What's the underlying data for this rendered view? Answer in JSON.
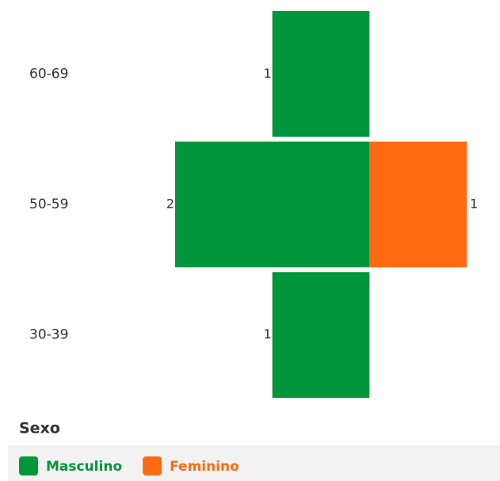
{
  "chart_data": {
    "type": "pyramid",
    "categories": [
      "60-69",
      "50-59",
      "30-39"
    ],
    "series": [
      {
        "name": "Masculino",
        "color": "#009639",
        "values": [
          1,
          2,
          1
        ]
      },
      {
        "name": "Feminino",
        "color": "#ff6b12",
        "values": [
          null,
          1,
          null
        ]
      }
    ],
    "xlim": [
      -2,
      1
    ],
    "legend_title": "Sexo",
    "legend": "bottom"
  }
}
